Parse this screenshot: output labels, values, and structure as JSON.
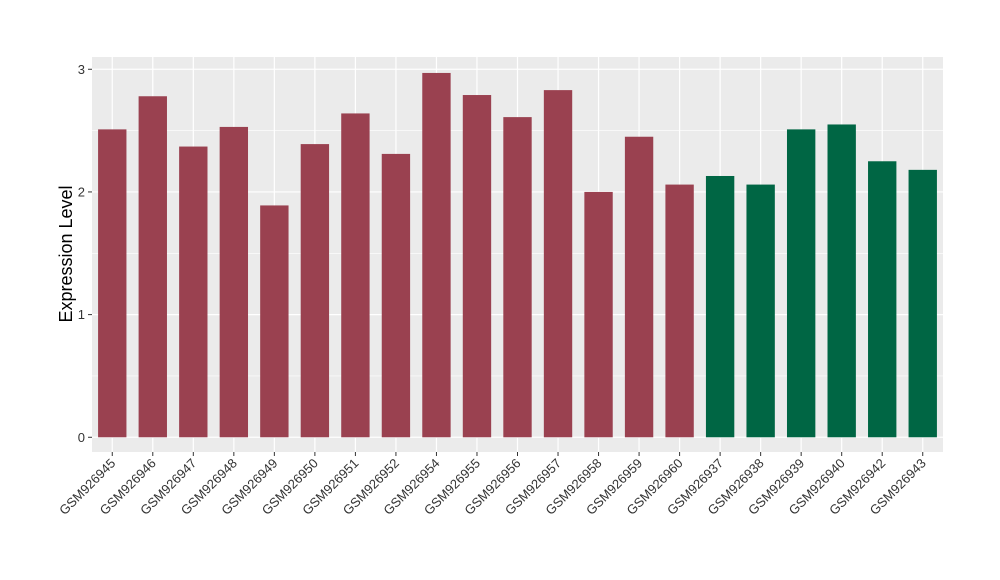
{
  "chart_data": {
    "type": "bar",
    "title": "",
    "xlabel": "",
    "ylabel": "Expression Level",
    "ylim": [
      -0.12,
      3.1
    ],
    "yticks": [
      0,
      1,
      2,
      3
    ],
    "grid": true,
    "colors": {
      "group_a": "#9A4150",
      "group_b": "#006644",
      "panel": "#EBEBEB",
      "grid": "#FFFFFF"
    },
    "categories": [
      "GSM926945",
      "GSM926946",
      "GSM926947",
      "GSM926948",
      "GSM926949",
      "GSM926950",
      "GSM926951",
      "GSM926952",
      "GSM926954",
      "GSM926955",
      "GSM926956",
      "GSM926957",
      "GSM926958",
      "GSM926959",
      "GSM926960",
      "GSM926937",
      "GSM926938",
      "GSM926939",
      "GSM926940",
      "GSM926942",
      "GSM926943"
    ],
    "values": [
      2.51,
      2.78,
      2.37,
      2.53,
      1.89,
      2.39,
      2.64,
      2.31,
      2.97,
      2.79,
      2.61,
      2.83,
      2.0,
      2.45,
      2.06,
      2.13,
      2.06,
      2.51,
      2.55,
      2.25,
      2.18
    ],
    "groups": [
      "a",
      "a",
      "a",
      "a",
      "a",
      "a",
      "a",
      "a",
      "a",
      "a",
      "a",
      "a",
      "a",
      "a",
      "a",
      "b",
      "b",
      "b",
      "b",
      "b",
      "b"
    ]
  }
}
